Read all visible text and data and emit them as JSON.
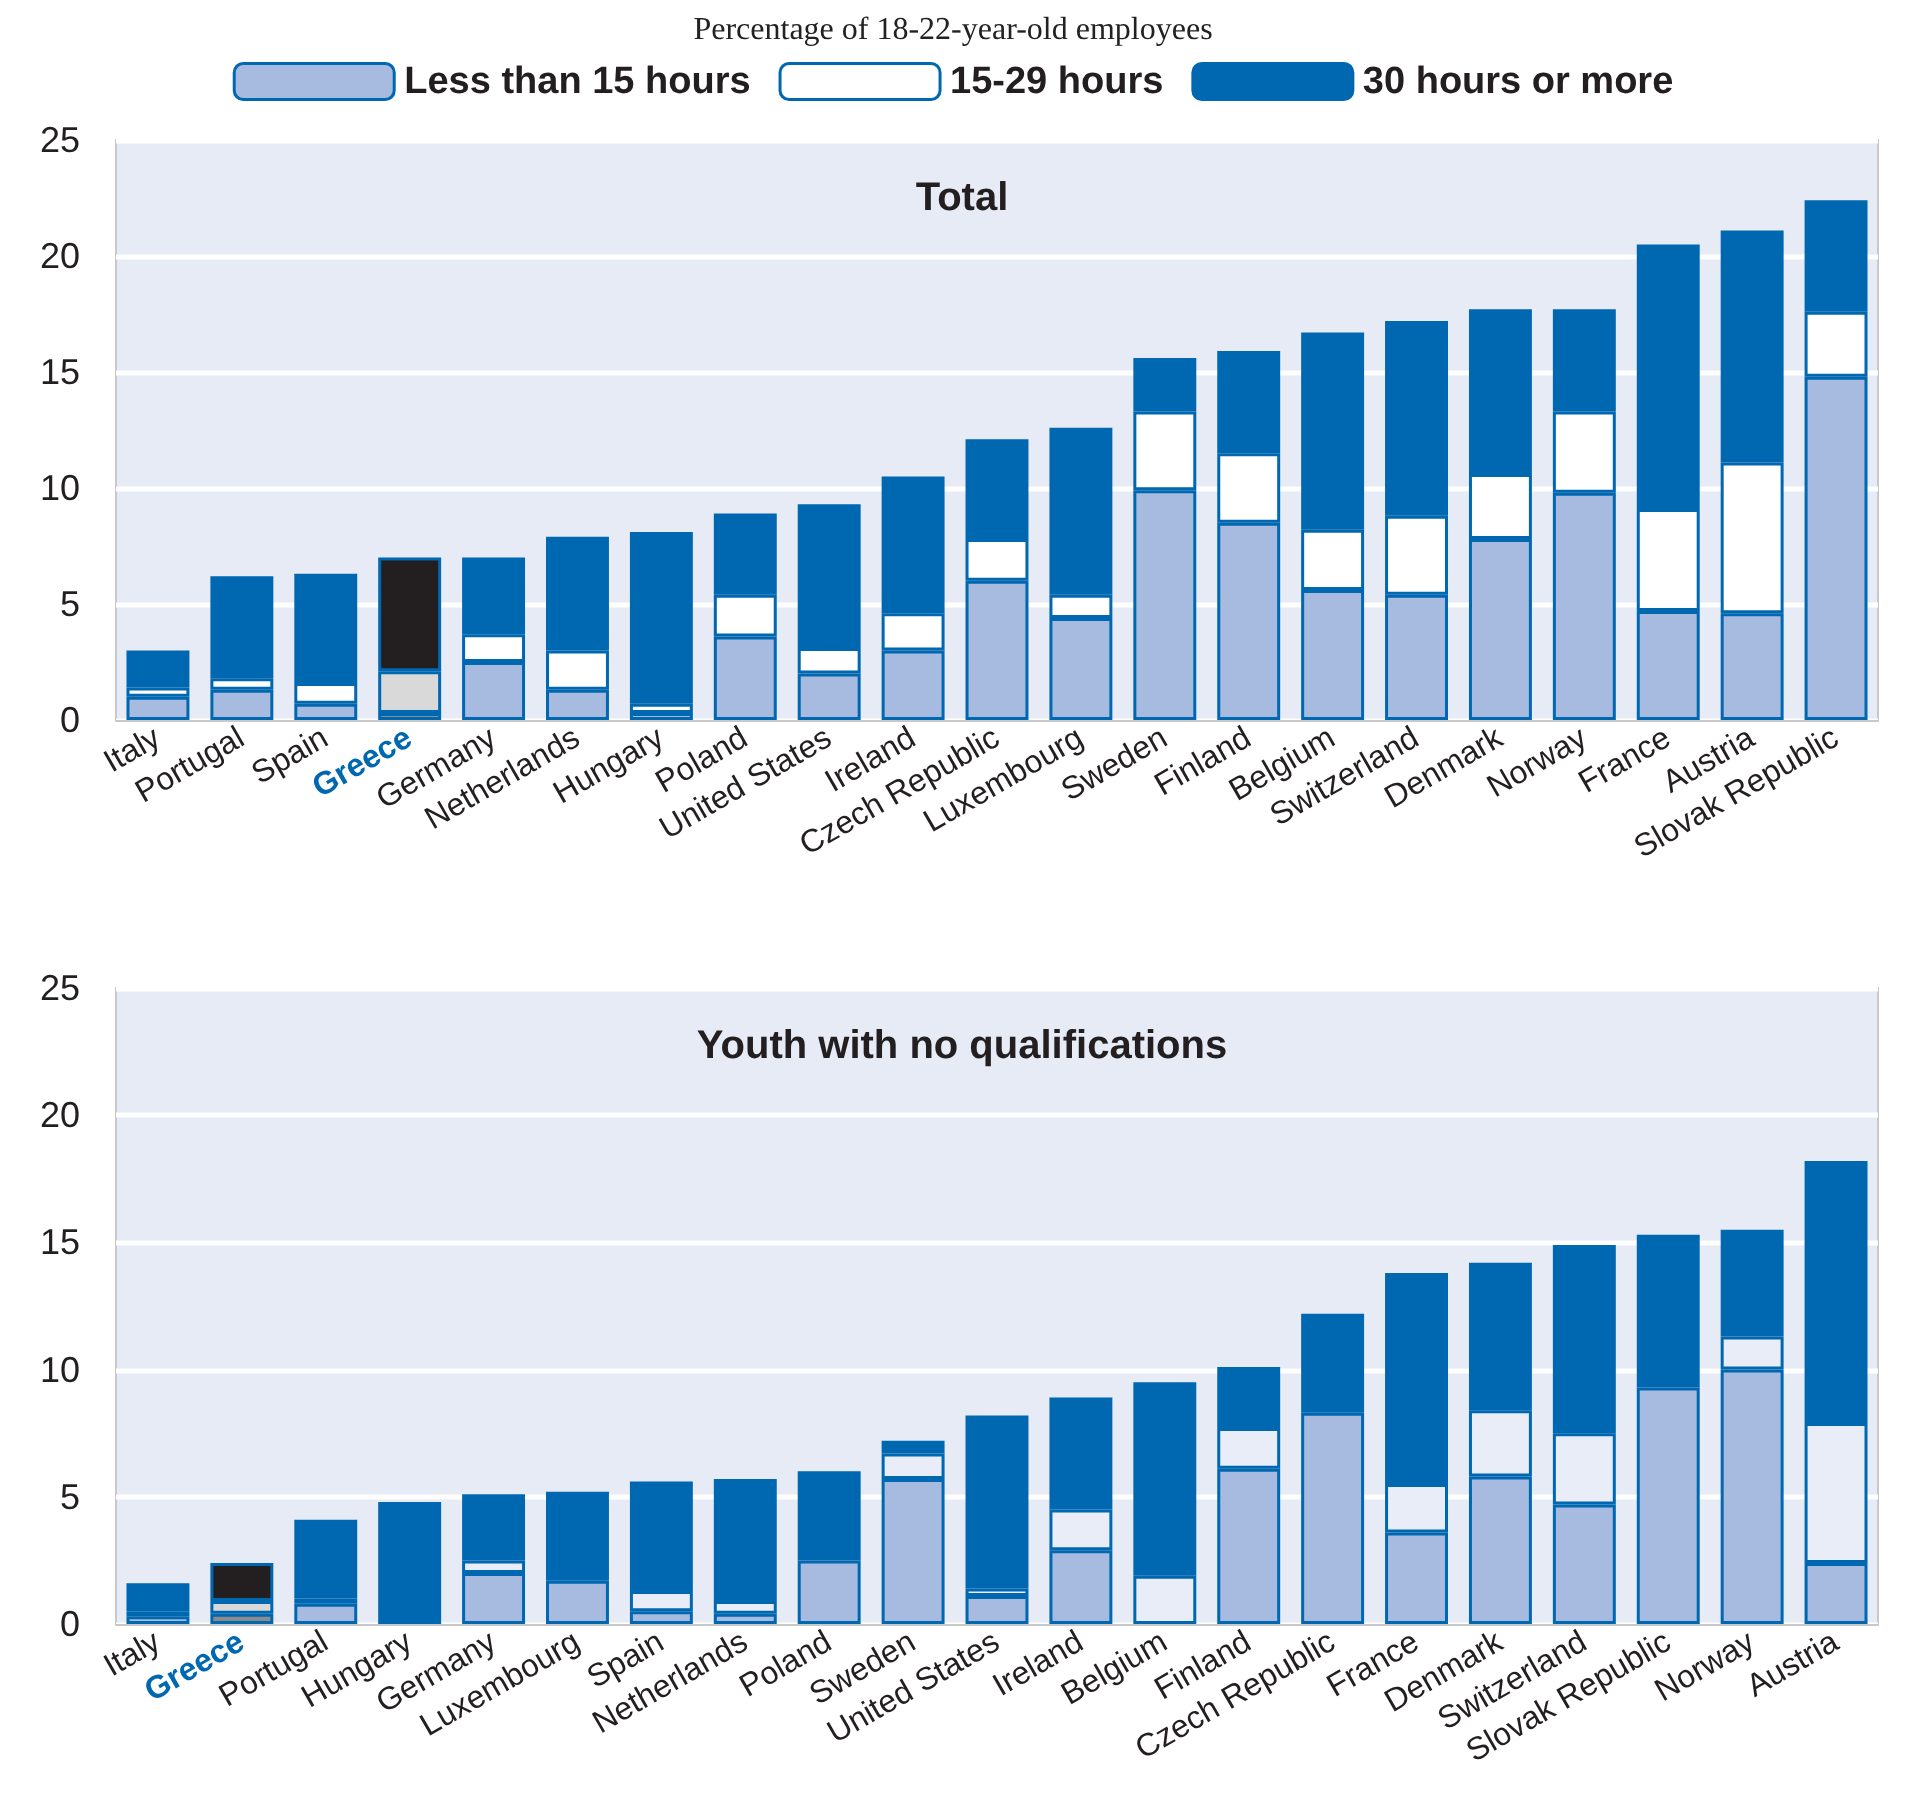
{
  "chart_data": [
    {
      "type": "bar",
      "ylabel": "Percentage of 18-22-year-old employees",
      "title": "Total",
      "stacked": true,
      "legend": "top",
      "grid": "y",
      "ylim": [
        0,
        25
      ],
      "yticks": [
        0,
        5,
        10,
        15,
        20,
        25
      ],
      "categories": [
        "Italy",
        "Portugal",
        "Spain",
        "Greece",
        "Germany",
        "Netherlands",
        "Hungary",
        "Poland",
        "United States",
        "Ireland",
        "Czech Republic",
        "Luxembourg",
        "Sweden",
        "Finland",
        "Belgium",
        "Switzerland",
        "Denmark",
        "Norway",
        "France",
        "Austria",
        "Slovak Republic"
      ],
      "series": [
        {
          "name": "Less than 15 hours",
          "color": "#a7badf",
          "colors": [
            "#a7badf",
            "#a7badf",
            "#a7badf",
            "#8c8c8c",
            "#a7badf",
            "#a7badf",
            "#a7badf",
            "#a7badf",
            "#a7badf",
            "#a7badf",
            "#a7badf",
            "#a7badf",
            "#a7badf",
            "#a7badf",
            "#a7badf",
            "#a7badf",
            "#a7badf",
            "#a7badf",
            "#a7badf",
            "#a7badf",
            "#a7badf"
          ],
          "values": [
            1.0,
            1.3,
            0.7,
            0.3,
            2.5,
            1.3,
            0.3,
            3.6,
            2.0,
            3.0,
            6.0,
            4.4,
            9.9,
            8.5,
            5.6,
            5.4,
            7.8,
            9.8,
            4.7,
            4.6,
            14.8
          ]
        },
        {
          "name": "15-29 hours",
          "color": "#ffffff",
          "colors": [
            "#ffffff",
            "#ffffff",
            "#ffffff",
            "#d9d9d9",
            "#ffffff",
            "#ffffff",
            "#ffffff",
            "#ffffff",
            "#ffffff",
            "#ffffff",
            "#ffffff",
            "#ffffff",
            "#ffffff",
            "#ffffff",
            "#ffffff",
            "#ffffff",
            "#ffffff",
            "#ffffff",
            "#ffffff",
            "#ffffff",
            "#ffffff"
          ],
          "values": [
            0.4,
            0.5,
            0.9,
            1.8,
            1.2,
            1.7,
            0.4,
            1.8,
            1.1,
            1.6,
            1.8,
            1.0,
            3.4,
            3.0,
            2.6,
            3.4,
            2.8,
            3.5,
            4.4,
            6.5,
            2.8
          ]
        },
        {
          "name": "30 hours or more",
          "color": "#0067b1",
          "colors": [
            "#0067b1",
            "#0067b1",
            "#0067b1",
            "#231f20",
            "#0067b1",
            "#0067b1",
            "#0067b1",
            "#0067b1",
            "#0067b1",
            "#0067b1",
            "#0067b1",
            "#0067b1",
            "#0067b1",
            "#0067b1",
            "#0067b1",
            "#0067b1",
            "#0067b1",
            "#0067b1",
            "#0067b1",
            "#0067b1",
            "#0067b1"
          ],
          "values": [
            1.6,
            4.4,
            4.7,
            4.9,
            3.3,
            4.9,
            7.4,
            3.5,
            6.2,
            5.9,
            4.3,
            7.2,
            2.3,
            4.4,
            8.5,
            8.4,
            7.1,
            4.4,
            11.4,
            10.0,
            4.8
          ]
        }
      ]
    },
    {
      "type": "bar",
      "title": "Youth with no qualifications",
      "stacked": true,
      "grid": "y",
      "ylim": [
        0,
        25
      ],
      "yticks": [
        0,
        5,
        10,
        15,
        20,
        25
      ],
      "categories": [
        "Italy",
        "Greece",
        "Portugal",
        "Hungary",
        "Germany",
        "Luxembourg",
        "Spain",
        "Netherlands",
        "Poland",
        "Sweden",
        "United States",
        "Ireland",
        "Belgium",
        "Finland",
        "Czech Republic",
        "France",
        "Denmark",
        "Switzerland",
        "Slovak Republic",
        "Norway",
        "Austria"
      ],
      "series": [
        {
          "color": "#a7badf",
          "colors": [
            "#a7badf",
            "#8c8c8c",
            "#a7badf",
            "#a7badf",
            "#a7badf",
            "#a7badf",
            "#a7badf",
            "#a7badf",
            "#a7badf",
            "#a7badf",
            "#a7badf",
            "#a7badf",
            "#a7badf",
            "#a7badf",
            "#a7badf",
            "#a7badf",
            "#a7badf",
            "#a7badf",
            "#a7badf",
            "#a7badf",
            "#a7badf"
          ],
          "values": [
            0.3,
            0.4,
            0.8,
            0,
            2.0,
            1.7,
            0.5,
            0.4,
            2.5,
            5.7,
            1.1,
            2.9,
            0,
            6.1,
            8.3,
            3.6,
            5.8,
            4.7,
            9.3,
            10.0,
            2.4
          ]
        },
        {
          "color": "#e8edf8",
          "colors": [
            "#e8edf8",
            "#d9d9d9",
            "#e8edf8",
            "#e8edf8",
            "#e8edf8",
            "#e8edf8",
            "#e8edf8",
            "#e8edf8",
            "#e8edf8",
            "#e8edf8",
            "#e8edf8",
            "#e8edf8",
            "#e8edf8",
            "#e8edf8",
            "#e8edf8",
            "#e8edf8",
            "#e8edf8",
            "#e8edf8",
            "#e8edf8",
            "#e8edf8",
            "#e8edf8"
          ],
          "values": [
            0.2,
            0.5,
            0.2,
            0,
            0.5,
            0,
            0.8,
            0.5,
            0,
            1.0,
            0.3,
            1.6,
            1.9,
            1.6,
            0,
            1.9,
            2.6,
            2.8,
            0,
            1.3,
            5.5
          ]
        },
        {
          "color": "#0067b1",
          "colors": [
            "#0067b1",
            "#231f20",
            "#0067b1",
            "#0067b1",
            "#0067b1",
            "#0067b1",
            "#0067b1",
            "#0067b1",
            "#0067b1",
            "#0067b1",
            "#0067b1",
            "#0067b1",
            "#0067b1",
            "#0067b1",
            "#0067b1",
            "#0067b1",
            "#0067b1",
            "#0067b1",
            "#0067b1",
            "#0067b1",
            "#0067b1"
          ],
          "values": [
            1.1,
            1.5,
            3.1,
            4.8,
            2.6,
            3.5,
            4.3,
            4.8,
            3.5,
            0.5,
            6.8,
            4.4,
            7.6,
            2.4,
            3.9,
            8.3,
            5.8,
            7.4,
            6.0,
            4.2,
            10.3
          ]
        }
      ]
    }
  ]
}
